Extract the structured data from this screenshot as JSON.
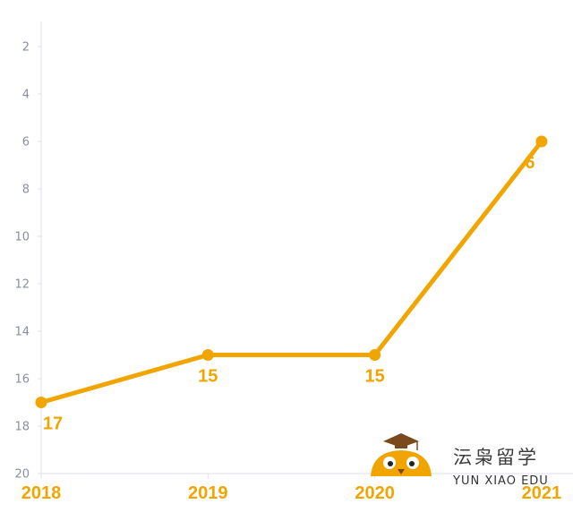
{
  "chart_data": {
    "type": "line",
    "title": "",
    "xlabel": "",
    "ylabel": "",
    "categories": [
      "2018",
      "2019",
      "2020",
      "2021"
    ],
    "series": [
      {
        "values": [
          17,
          15,
          15,
          6
        ],
        "color": "#f0a500"
      }
    ],
    "data_labels": [
      "17",
      "15",
      "15",
      "6"
    ],
    "yticks": [
      "2",
      "4",
      "6",
      "8",
      "10",
      "12",
      "14",
      "16",
      "18",
      "20"
    ],
    "ylim": [
      20,
      1.2
    ],
    "y_axis_inverted": true,
    "grid": false,
    "accent_color": "#f0a500"
  },
  "watermark": {
    "cn": "沄枭留学",
    "en": "YUN XIAO EDU",
    "icon": "owl-graduation-cap-icon"
  }
}
